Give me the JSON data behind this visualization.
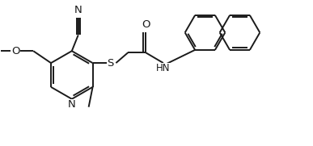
{
  "bg_color": "#ffffff",
  "lc": "#1a1a1a",
  "lw": 1.4,
  "fs": 8.5,
  "figsize": [
    3.87,
    1.81
  ],
  "dpi": 100,
  "xlim": [
    0.0,
    3.87
  ],
  "ylim": [
    0.0,
    1.81
  ]
}
